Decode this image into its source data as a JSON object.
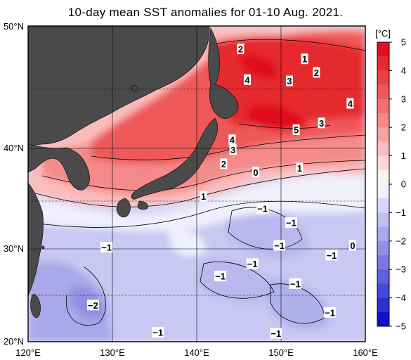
{
  "title": "10-day mean SST anomalies for 01-10 Aug. 2021.",
  "map": {
    "lon_range": [
      120,
      160
    ],
    "lat_range": [
      20,
      50
    ],
    "lon_ticks": [
      "120°E",
      "130°E",
      "140°E",
      "150°E",
      "160°E"
    ],
    "lat_ticks": [
      "50°N",
      "40°N",
      "30°N",
      "20°N"
    ],
    "grid": true,
    "land_color": "#4a4a4a"
  },
  "colorbar": {
    "unit": "[°C]",
    "ticks": [
      "5",
      "4",
      "3",
      "2",
      "1",
      "0",
      "−1",
      "−2",
      "−3",
      "−4",
      "−5"
    ],
    "levels": [
      {
        "range": [
          4.5,
          5
        ],
        "color": "#e0101e"
      },
      {
        "range": [
          4,
          4.5
        ],
        "color": "#e52a2e"
      },
      {
        "range": [
          3.5,
          4
        ],
        "color": "#ea4143"
      },
      {
        "range": [
          3,
          3.5
        ],
        "color": "#ee5859"
      },
      {
        "range": [
          2.5,
          3
        ],
        "color": "#f27172"
      },
      {
        "range": [
          2,
          2.5
        ],
        "color": "#f58a8a"
      },
      {
        "range": [
          1.5,
          2
        ],
        "color": "#f8a3a3"
      },
      {
        "range": [
          1,
          1.5
        ],
        "color": "#fbbcbc"
      },
      {
        "range": [
          0.5,
          1
        ],
        "color": "#fdd6d6"
      },
      {
        "range": [
          0,
          0.5
        ],
        "color": "#fff0f0"
      },
      {
        "range": [
          -0.5,
          0
        ],
        "color": "#f0f0ff"
      },
      {
        "range": [
          -1,
          -0.5
        ],
        "color": "#d8d8fa"
      },
      {
        "range": [
          -1.5,
          -1
        ],
        "color": "#c0c0f4"
      },
      {
        "range": [
          -2,
          -1.5
        ],
        "color": "#a8a8ee"
      },
      {
        "range": [
          -2.5,
          -2
        ],
        "color": "#9090e8"
      },
      {
        "range": [
          -3,
          -2.5
        ],
        "color": "#7878e2"
      },
      {
        "range": [
          -3.5,
          -3
        ],
        "color": "#6060dc"
      },
      {
        "range": [
          -4,
          -3.5
        ],
        "color": "#4848d6"
      },
      {
        "range": [
          -4.5,
          -4
        ],
        "color": "#3030d0"
      },
      {
        "range": [
          -5,
          -4.5
        ],
        "color": "#1010c8"
      }
    ]
  },
  "contour_labels": [
    {
      "text": "2",
      "lon": 145.2,
      "lat": 48.2
    },
    {
      "text": "1",
      "lon": 152.8,
      "lat": 47.4
    },
    {
      "text": "2",
      "lon": 154.2,
      "lat": 46.3
    },
    {
      "text": "4",
      "lon": 146.0,
      "lat": 45.7
    },
    {
      "text": "3",
      "lon": 151.0,
      "lat": 45.6
    },
    {
      "text": "4",
      "lon": 158.2,
      "lat": 43.7
    },
    {
      "text": "3",
      "lon": 154.8,
      "lat": 42.0
    },
    {
      "text": "5",
      "lon": 151.8,
      "lat": 41.4
    },
    {
      "text": "4",
      "lon": 144.2,
      "lat": 40.5
    },
    {
      "text": "3",
      "lon": 144.3,
      "lat": 39.6
    },
    {
      "text": "2",
      "lon": 143.2,
      "lat": 38.3
    },
    {
      "text": "0",
      "lon": 147.0,
      "lat": 37.5
    },
    {
      "text": "1",
      "lon": 152.2,
      "lat": 37.9
    },
    {
      "text": "1",
      "lon": 140.8,
      "lat": 35.2
    },
    {
      "text": "−1",
      "lon": 147.8,
      "lat": 34.0
    },
    {
      "text": "−1",
      "lon": 151.2,
      "lat": 32.6
    },
    {
      "text": "0",
      "lon": 158.5,
      "lat": 30.3
    },
    {
      "text": "−1",
      "lon": 129.3,
      "lat": 30.1
    },
    {
      "text": "−1",
      "lon": 149.8,
      "lat": 30.3
    },
    {
      "text": "−1",
      "lon": 156.0,
      "lat": 29.3
    },
    {
      "text": "−1",
      "lon": 146.6,
      "lat": 28.4
    },
    {
      "text": "−1",
      "lon": 142.8,
      "lat": 27.1
    },
    {
      "text": "−1",
      "lon": 151.7,
      "lat": 26.3
    },
    {
      "text": "−2",
      "lon": 127.7,
      "lat": 24.0
    },
    {
      "text": "−1",
      "lon": 155.8,
      "lat": 23.2
    },
    {
      "text": "−1",
      "lon": 135.4,
      "lat": 21.0
    },
    {
      "text": "−1",
      "lon": 149.4,
      "lat": 20.9
    }
  ]
}
